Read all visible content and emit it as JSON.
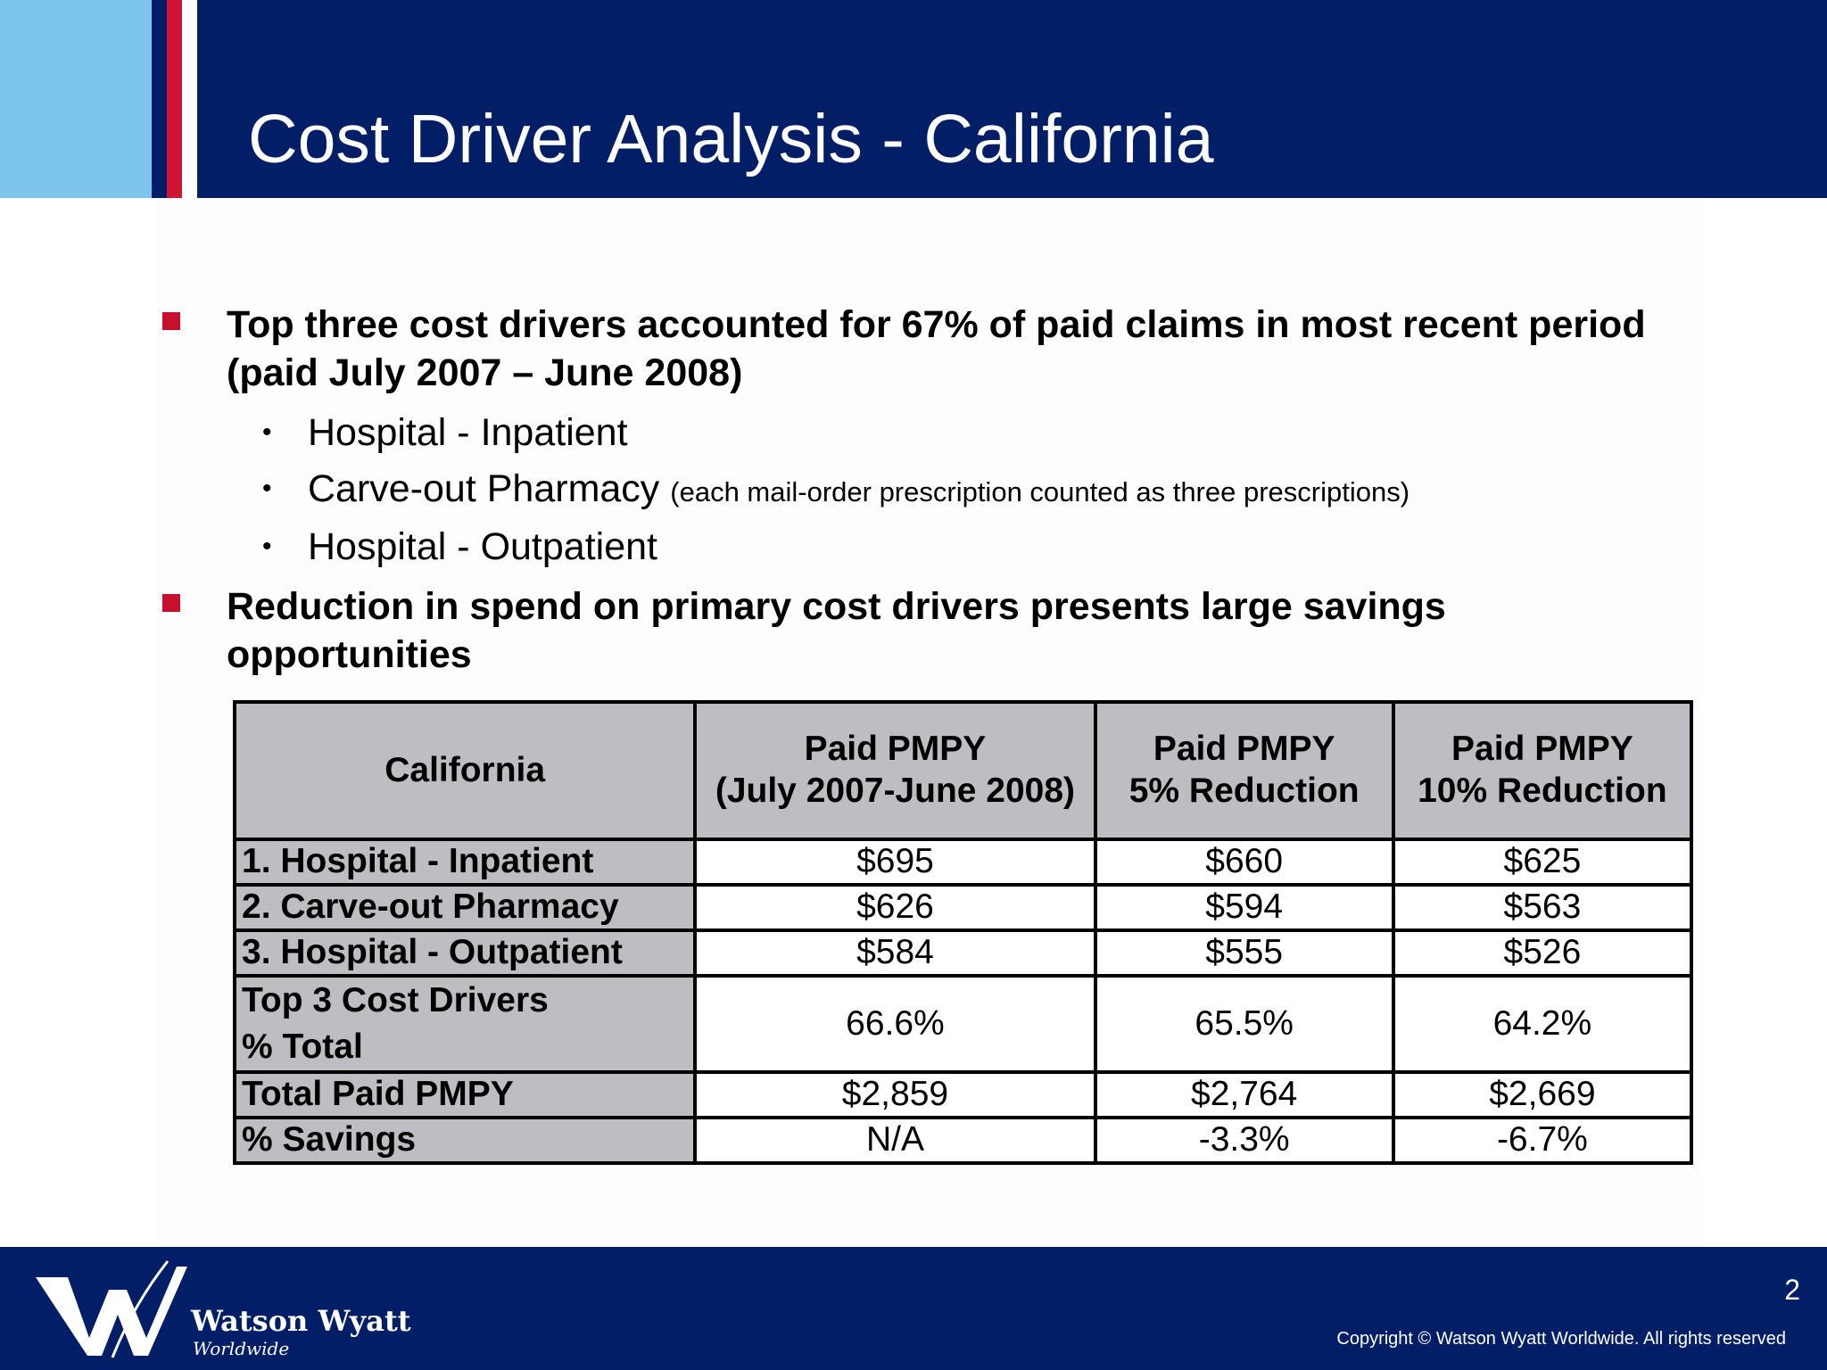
{
  "header": {
    "title": "Cost Driver Analysis - California"
  },
  "bullets": [
    {
      "text": "Top three cost drivers accounted for 67% of paid claims in most recent period (paid July 2007 – June 2008)",
      "sub": [
        {
          "text": "Hospital - Inpatient",
          "note": ""
        },
        {
          "text": "Carve-out Pharmacy",
          "note": "(each mail-order prescription counted as three prescriptions)"
        },
        {
          "text": "Hospital - Outpatient",
          "note": ""
        }
      ]
    },
    {
      "text": "Reduction in spend on primary cost drivers presents large savings opportunities"
    }
  ],
  "table": {
    "headers": [
      {
        "line1": "California",
        "line2": ""
      },
      {
        "line1": "Paid PMPY",
        "line2": "(July 2007-June 2008)"
      },
      {
        "line1": "Paid PMPY",
        "line2": "5% Reduction"
      },
      {
        "line1": "Paid PMPY",
        "line2": "10% Reduction"
      }
    ],
    "rows": [
      {
        "label": "1. Hospital - Inpatient",
        "label2": "",
        "values": [
          "$695",
          "$660",
          "$625"
        ]
      },
      {
        "label": "2. Carve-out Pharmacy",
        "label2": "",
        "values": [
          "$626",
          "$594",
          "$563"
        ]
      },
      {
        "label": "3. Hospital - Outpatient",
        "label2": "",
        "values": [
          "$584",
          "$555",
          "$526"
        ]
      },
      {
        "label": "Top 3 Cost Drivers",
        "label2": "% Total",
        "values": [
          "66.6%",
          "65.5%",
          "64.2%"
        ]
      },
      {
        "label": "Total Paid PMPY",
        "label2": "",
        "values": [
          "$2,859",
          "$2,764",
          "$2,669"
        ]
      },
      {
        "label": "% Savings",
        "label2": "",
        "values": [
          "N/A",
          "-3.3%",
          "-6.7%"
        ]
      }
    ]
  },
  "footer": {
    "logo_name": "Watson Wyatt",
    "logo_sub": "Worldwide",
    "page_number": "2",
    "copyright": "Copyright © Watson Wyatt Worldwide. All rights reserved"
  },
  "colors": {
    "navy": "#011e67",
    "light_blue": "#7cc5ec",
    "red": "#d01434",
    "bullet_red": "#c8102e",
    "table_gray": "#bebdc1"
  }
}
